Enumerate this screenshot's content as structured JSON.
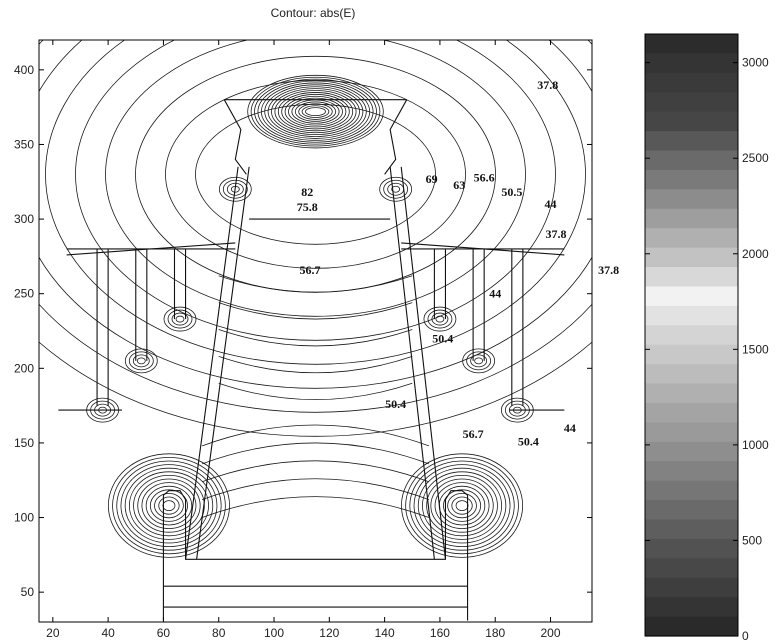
{
  "chart_data": {
    "type": "heatmap",
    "title": "Contour: abs(E)",
    "xlim": [
      15,
      215
    ],
    "ylim": [
      30,
      420
    ],
    "x_ticks": [
      20,
      40,
      60,
      80,
      100,
      120,
      140,
      160,
      180,
      200
    ],
    "y_ticks": [
      50,
      100,
      150,
      200,
      250,
      300,
      350,
      400
    ],
    "grid": false,
    "colormap": "gray",
    "colorbar": {
      "range": [
        0,
        3150
      ],
      "ticks": [
        0,
        500,
        1000,
        1500,
        2000,
        2500,
        3000
      ],
      "bands": [
        "#2c2c2c",
        "#343434",
        "#3a3a3a",
        "#404040",
        "#464646",
        "#585858",
        "#6a6a6a",
        "#7a7a7a",
        "#8c8c8c",
        "#9e9e9e",
        "#b0b0b0",
        "#c2c2c2",
        "#d8d8d8",
        "#f2f2f2",
        "#e2e2e2",
        "#d4d4d4",
        "#c8c8c8",
        "#bcbcbc",
        "#b0b0b0",
        "#a4a4a4",
        "#9a9a9a",
        "#8e8e8e",
        "#828282",
        "#767676",
        "#6a6a6a",
        "#5e5e5e",
        "#525252",
        "#484848",
        "#3e3e3e",
        "#343434",
        "#2a2a2a"
      ]
    },
    "contour_labels": [
      {
        "text": "37.8",
        "x": 199,
        "y": 390
      },
      {
        "text": "82",
        "x": 112,
        "y": 318
      },
      {
        "text": "75.8",
        "x": 112,
        "y": 308
      },
      {
        "text": "69",
        "x": 157,
        "y": 327
      },
      {
        "text": "63",
        "x": 167,
        "y": 323
      },
      {
        "text": "56.6",
        "x": 176,
        "y": 328
      },
      {
        "text": "50.5",
        "x": 186,
        "y": 318
      },
      {
        "text": "44",
        "x": 200,
        "y": 310
      },
      {
        "text": "37.8",
        "x": 202,
        "y": 290
      },
      {
        "text": "37.8",
        "x": 221,
        "y": 266
      },
      {
        "text": "56.7",
        "x": 113,
        "y": 266
      },
      {
        "text": "44",
        "x": 180,
        "y": 250
      },
      {
        "text": "50.4",
        "x": 161,
        "y": 220
      },
      {
        "text": "50.4",
        "x": 144,
        "y": 176
      },
      {
        "text": "56.7",
        "x": 172,
        "y": 156
      },
      {
        "text": "50.4",
        "x": 192,
        "y": 151
      },
      {
        "text": "44",
        "x": 207,
        "y": 160
      }
    ]
  }
}
